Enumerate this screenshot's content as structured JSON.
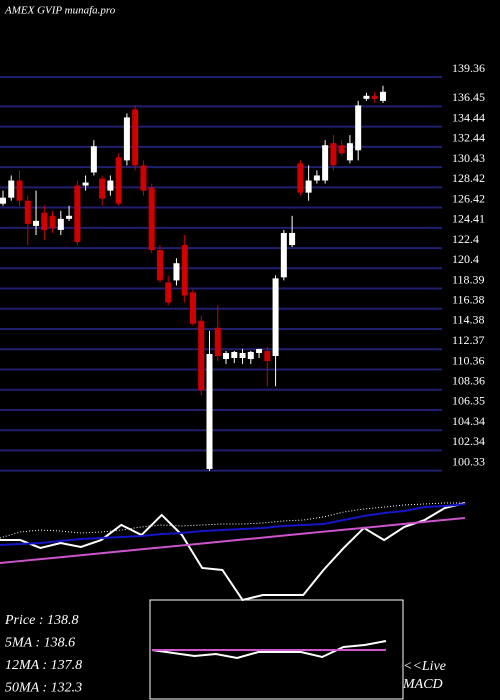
{
  "chart_data": [
    {
      "type": "candlestick",
      "title": "AMEX  GVIP munafa.pro",
      "ylim": [
        100,
        147
      ],
      "yticks": [
        139.36,
        136.45,
        134.44,
        132.44,
        130.43,
        128.42,
        126.42,
        124.41,
        122.4,
        120.4,
        118.39,
        116.38,
        114.38,
        112.37,
        110.36,
        108.36,
        106.35,
        104.34,
        102.34,
        100.33
      ],
      "grid": true,
      "grid_color": "#20206e",
      "up_color": "#ffffff",
      "down_color": "#d00000",
      "open": [
        126.8,
        127.4,
        129.1,
        127.1,
        124.6,
        125.9,
        125.6,
        124.2,
        125.3,
        128.6,
        128.6,
        129.9,
        129.3,
        128.1,
        131.4,
        131.1,
        136.15,
        130.6,
        128.4,
        122.2,
        119.0,
        119.2,
        122.7,
        118.0,
        115.2,
        100.5,
        114.5,
        111.4,
        111.5,
        111.5,
        111.4,
        112.0,
        112.2,
        111.7,
        119.5,
        122.7,
        130.8,
        127.9,
        129.1,
        129.1,
        132.8,
        132.6,
        131.1,
        132.1,
        137.2,
        137.5,
        137.0
      ],
      "high": [
        128.1,
        129.6,
        130.1,
        127.6,
        128.1,
        126.6,
        126.1,
        126.1,
        126.6,
        129.1,
        129.6,
        133.1,
        129.6,
        129.6,
        131.8,
        135.75,
        136.55,
        131.1,
        128.8,
        122.7,
        119.7,
        121.4,
        123.7,
        118.3,
        115.7,
        114.2,
        116.7,
        112.2,
        112.2,
        112.4,
        112.2,
        112.4,
        112.6,
        119.7,
        124.2,
        125.6,
        131.1,
        130.6,
        130.1,
        133.1,
        133.6,
        133.1,
        133.6,
        137.0,
        137.8,
        137.9,
        138.5
      ],
      "low": [
        126.6,
        127.1,
        126.6,
        122.7,
        123.7,
        123.2,
        123.9,
        123.7,
        125.1,
        122.7,
        128.1,
        129.6,
        126.6,
        127.6,
        126.6,
        130.6,
        130.1,
        127.6,
        121.9,
        119.0,
        116.7,
        118.7,
        117.0,
        114.7,
        107.8,
        100.3,
        111.2,
        110.9,
        111.0,
        110.9,
        110.9,
        111.5,
        108.7,
        108.7,
        119.2,
        122.5,
        127.6,
        127.1,
        128.8,
        128.8,
        130.1,
        131.6,
        130.8,
        131.1,
        137.0,
        136.8,
        136.8
      ],
      "close": [
        127.4,
        129.1,
        127.1,
        124.8,
        125.1,
        124.2,
        124.4,
        125.3,
        125.6,
        123.0,
        128.9,
        132.5,
        127.3,
        129.1,
        126.8,
        135.36,
        130.6,
        128.1,
        122.2,
        119.2,
        117.0,
        120.9,
        117.7,
        114.9,
        108.3,
        111.9,
        111.7,
        112.0,
        112.1,
        112.0,
        112.1,
        112.4,
        111.2,
        119.4,
        123.9,
        123.9,
        127.9,
        129.1,
        129.6,
        132.6,
        130.6,
        131.8,
        132.8,
        136.55,
        137.5,
        137.2,
        137.9
      ],
      "info": [
        "Price    : 138.8",
        "5MA    : 138.6",
        "12MA  : 137.8",
        "50MA  : 132.3"
      ]
    },
    {
      "type": "line",
      "ylim": [
        0,
        100
      ],
      "series": [
        {
          "color": "#ffffff",
          "style": "solid",
          "values": [
            54.5,
            54.5,
            47.3,
            51.8,
            48.2,
            54.5,
            68.2,
            59.1,
            77.3,
            59.1,
            29.1,
            27.3,
            0,
            4.5,
            4.5,
            4.5,
            27.3,
            47.3,
            65.5,
            54.5,
            66.4,
            72.7,
            83.6,
            88.2
          ]
        },
        {
          "color": "#1515c8",
          "style": "solid",
          "values": [
            50,
            50.9,
            51.8,
            53.6,
            55.5,
            56.4,
            57.3,
            58.2,
            60,
            60.9,
            62.7,
            63.6,
            64.5,
            65.5,
            67.3,
            68.2,
            69.1,
            72.7,
            76.4,
            79.1,
            80.9,
            84.5,
            85.5,
            87.3
          ]
        },
        {
          "color": "#cc55cc",
          "style": "solid",
          "values": [
            33.6,
            35.4,
            37.2,
            38.9,
            40.7,
            42.5,
            44.3,
            46.1,
            47.8,
            49.6,
            51.4,
            53.2,
            55,
            56.7,
            58.5,
            60.3,
            62.1,
            63.9,
            65.6,
            67.4,
            69.2,
            71,
            72.8,
            74.5
          ]
        },
        {
          "color": "#ffffff",
          "style": "dotted",
          "values": [
            56.4,
            61.8,
            63.6,
            62.7,
            60.9,
            61.8,
            63.6,
            66.4,
            68.2,
            67.3,
            68.2,
            69.1,
            69.1,
            70,
            71.8,
            72.7,
            75.5,
            80,
            82.7,
            84.5,
            86.4,
            87.3,
            88.2,
            88.2
          ]
        }
      ]
    },
    {
      "type": "line",
      "ylim": [
        -50,
        50
      ],
      "live": "<<Live",
      "label": "MACD",
      "series": [
        {
          "color": "#ffffff",
          "style": "solid",
          "values": [
            0,
            -3,
            -6,
            -4,
            -8,
            -2,
            -2,
            -2,
            -7,
            3,
            5,
            9
          ]
        },
        {
          "color": "#cc55cc",
          "style": "solid",
          "values": [
            0,
            0,
            0,
            0,
            0,
            0,
            0,
            0,
            0,
            0,
            0,
            0
          ]
        }
      ]
    }
  ]
}
